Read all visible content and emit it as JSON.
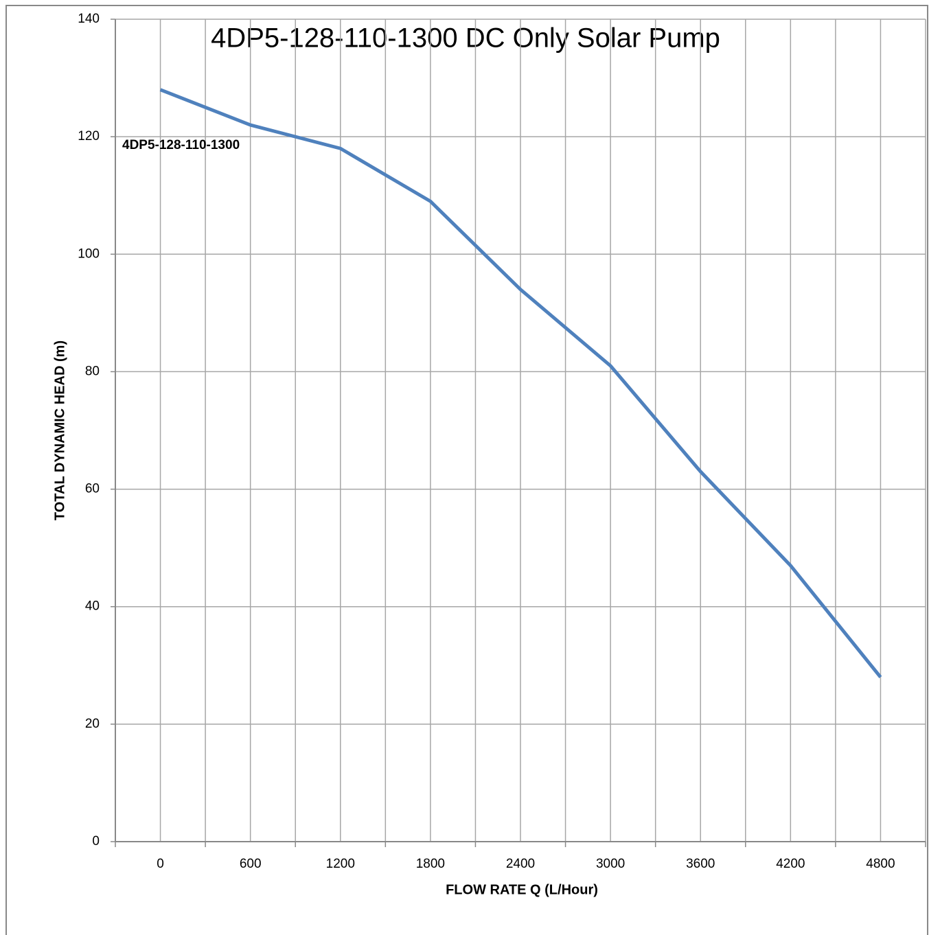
{
  "chart_data": {
    "type": "line",
    "title": "4DP5-128-110-1300 DC Only Solar Pump",
    "x_label": "FLOW RATE Q (L/Hour)",
    "y_label": "TOTAL DYNAMIC HEAD (m)",
    "x": [
      0,
      600,
      1200,
      1800,
      2400,
      3000,
      3600,
      4200,
      4800
    ],
    "series": [
      {
        "name": "4DP5-128-110-1300",
        "color": "#4f81bd",
        "values": [
          128,
          122,
          118,
          109,
          94,
          81,
          63,
          47,
          28
        ]
      }
    ],
    "xlim": [
      -300,
      5100
    ],
    "xticks": [
      0,
      600,
      1200,
      1800,
      2400,
      3000,
      3600,
      4200,
      4800
    ],
    "xminor_ticks": [
      -300,
      300,
      900,
      1500,
      2100,
      2700,
      3300,
      3900,
      4500,
      5100
    ],
    "ylim": [
      0,
      140
    ],
    "yticks": [
      0,
      20,
      40,
      60,
      80,
      100,
      120,
      140
    ],
    "grid": true
  }
}
